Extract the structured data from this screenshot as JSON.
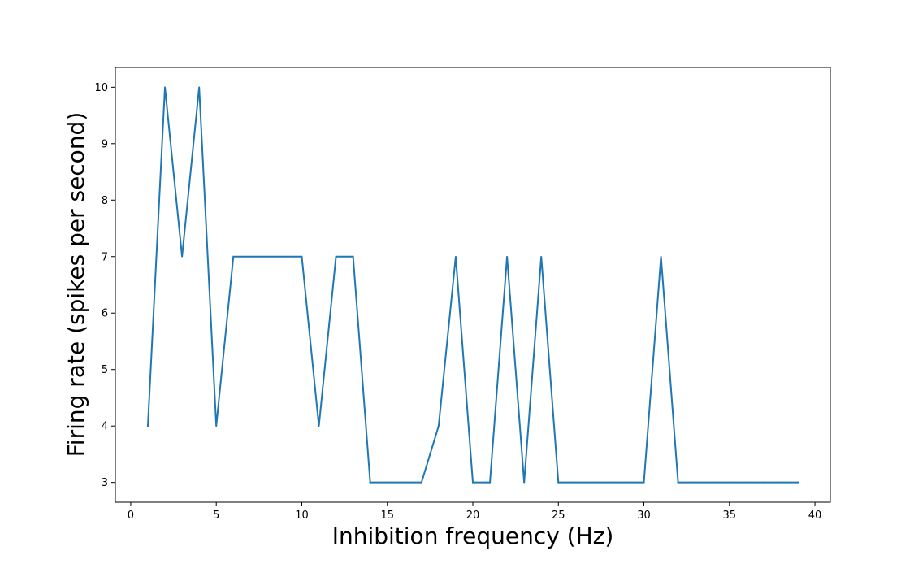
{
  "chart_data": {
    "type": "line",
    "title": "",
    "xlabel": "Inhibition frequency (Hz)",
    "ylabel": "Firing rate (spikes per second)",
    "xlim": [
      -0.9,
      40.9
    ],
    "ylim": [
      2.65,
      10.35
    ],
    "xticks": [
      0,
      5,
      10,
      15,
      20,
      25,
      30,
      35,
      40
    ],
    "yticks": [
      3,
      4,
      5,
      6,
      7,
      8,
      9,
      10
    ],
    "grid": false,
    "legend": "none",
    "series": [
      {
        "color": "#1f77b4",
        "x": [
          1,
          2,
          3,
          4,
          5,
          6,
          7,
          8,
          9,
          10,
          11,
          12,
          13,
          14,
          15,
          16,
          17,
          18,
          19,
          20,
          21,
          22,
          23,
          24,
          25,
          26,
          27,
          28,
          29,
          30,
          31,
          32,
          33,
          34,
          35,
          36,
          37,
          38,
          39
        ],
        "y": [
          4,
          10,
          7,
          10,
          4,
          7,
          7,
          7,
          7,
          7,
          4,
          7,
          7,
          3,
          3,
          3,
          3,
          4,
          7,
          3,
          3,
          7,
          3,
          7,
          3,
          3,
          3,
          3,
          3,
          3,
          7,
          3,
          3,
          3,
          3,
          3,
          3,
          3,
          3
        ]
      }
    ]
  }
}
